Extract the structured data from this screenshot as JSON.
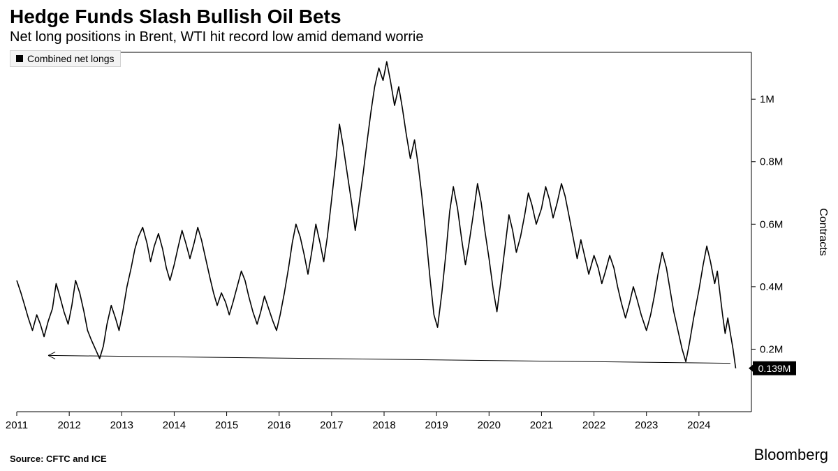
{
  "title": "Hedge Funds Slash Bullish Oil Bets",
  "subtitle": "Net long positions in Brent, WTI hit record low amid demand worrie",
  "legend": {
    "label": "Combined net longs",
    "swatch_color": "#000000"
  },
  "source": "Source: CFTC and ICE",
  "brand": "Bloomberg",
  "chart": {
    "type": "line",
    "background_color": "#ffffff",
    "line_color": "#000000",
    "line_width": 1.6,
    "border_color": "#000000",
    "grid_color": "#d0d0d0",
    "tick_color": "#000000",
    "tick_font_size": 15,
    "y_axis_label": "Contracts",
    "y_axis_label_font_size": 16,
    "x_domain": [
      2011,
      2025
    ],
    "y_domain": [
      0,
      1150000
    ],
    "x_ticks": [
      2011,
      2012,
      2013,
      2014,
      2015,
      2016,
      2017,
      2018,
      2019,
      2020,
      2021,
      2022,
      2023,
      2024
    ],
    "y_ticks": [
      {
        "v": 200000,
        "label": "0.2M"
      },
      {
        "v": 400000,
        "label": "0.4M"
      },
      {
        "v": 600000,
        "label": "0.6M"
      },
      {
        "v": 800000,
        "label": "0.8M"
      },
      {
        "v": 1000000,
        "label": "1M"
      }
    ],
    "callout": {
      "value": 139000,
      "label": "0.139M",
      "bg": "#000000",
      "fg": "#ffffff",
      "font_size": 14
    },
    "arrow": {
      "from_x": 2024.6,
      "from_y": 155000,
      "to_x": 2011.6,
      "to_y": 180000,
      "color": "#000000"
    },
    "series": [
      {
        "x": 2011.0,
        "y": 420000
      },
      {
        "x": 2011.08,
        "y": 380000
      },
      {
        "x": 2011.15,
        "y": 340000
      },
      {
        "x": 2011.22,
        "y": 300000
      },
      {
        "x": 2011.3,
        "y": 260000
      },
      {
        "x": 2011.38,
        "y": 310000
      },
      {
        "x": 2011.45,
        "y": 280000
      },
      {
        "x": 2011.52,
        "y": 240000
      },
      {
        "x": 2011.6,
        "y": 290000
      },
      {
        "x": 2011.68,
        "y": 330000
      },
      {
        "x": 2011.75,
        "y": 410000
      },
      {
        "x": 2011.82,
        "y": 370000
      },
      {
        "x": 2011.9,
        "y": 320000
      },
      {
        "x": 2011.98,
        "y": 280000
      },
      {
        "x": 2012.05,
        "y": 340000
      },
      {
        "x": 2012.12,
        "y": 420000
      },
      {
        "x": 2012.2,
        "y": 380000
      },
      {
        "x": 2012.28,
        "y": 320000
      },
      {
        "x": 2012.35,
        "y": 260000
      },
      {
        "x": 2012.42,
        "y": 230000
      },
      {
        "x": 2012.5,
        "y": 200000
      },
      {
        "x": 2012.58,
        "y": 170000
      },
      {
        "x": 2012.65,
        "y": 210000
      },
      {
        "x": 2012.72,
        "y": 280000
      },
      {
        "x": 2012.8,
        "y": 340000
      },
      {
        "x": 2012.88,
        "y": 300000
      },
      {
        "x": 2012.95,
        "y": 260000
      },
      {
        "x": 2013.02,
        "y": 320000
      },
      {
        "x": 2013.1,
        "y": 400000
      },
      {
        "x": 2013.18,
        "y": 460000
      },
      {
        "x": 2013.25,
        "y": 520000
      },
      {
        "x": 2013.32,
        "y": 560000
      },
      {
        "x": 2013.4,
        "y": 590000
      },
      {
        "x": 2013.48,
        "y": 540000
      },
      {
        "x": 2013.55,
        "y": 480000
      },
      {
        "x": 2013.62,
        "y": 530000
      },
      {
        "x": 2013.7,
        "y": 570000
      },
      {
        "x": 2013.78,
        "y": 520000
      },
      {
        "x": 2013.85,
        "y": 460000
      },
      {
        "x": 2013.92,
        "y": 420000
      },
      {
        "x": 2014.0,
        "y": 470000
      },
      {
        "x": 2014.08,
        "y": 530000
      },
      {
        "x": 2014.15,
        "y": 580000
      },
      {
        "x": 2014.22,
        "y": 540000
      },
      {
        "x": 2014.3,
        "y": 490000
      },
      {
        "x": 2014.38,
        "y": 540000
      },
      {
        "x": 2014.45,
        "y": 590000
      },
      {
        "x": 2014.52,
        "y": 550000
      },
      {
        "x": 2014.6,
        "y": 490000
      },
      {
        "x": 2014.68,
        "y": 430000
      },
      {
        "x": 2014.75,
        "y": 380000
      },
      {
        "x": 2014.82,
        "y": 340000
      },
      {
        "x": 2014.9,
        "y": 380000
      },
      {
        "x": 2014.98,
        "y": 350000
      },
      {
        "x": 2015.05,
        "y": 310000
      },
      {
        "x": 2015.12,
        "y": 350000
      },
      {
        "x": 2015.2,
        "y": 400000
      },
      {
        "x": 2015.28,
        "y": 450000
      },
      {
        "x": 2015.35,
        "y": 420000
      },
      {
        "x": 2015.42,
        "y": 370000
      },
      {
        "x": 2015.5,
        "y": 320000
      },
      {
        "x": 2015.58,
        "y": 280000
      },
      {
        "x": 2015.65,
        "y": 320000
      },
      {
        "x": 2015.72,
        "y": 370000
      },
      {
        "x": 2015.8,
        "y": 330000
      },
      {
        "x": 2015.88,
        "y": 290000
      },
      {
        "x": 2015.95,
        "y": 260000
      },
      {
        "x": 2016.02,
        "y": 310000
      },
      {
        "x": 2016.1,
        "y": 380000
      },
      {
        "x": 2016.18,
        "y": 460000
      },
      {
        "x": 2016.25,
        "y": 540000
      },
      {
        "x": 2016.32,
        "y": 600000
      },
      {
        "x": 2016.4,
        "y": 560000
      },
      {
        "x": 2016.48,
        "y": 500000
      },
      {
        "x": 2016.55,
        "y": 440000
      },
      {
        "x": 2016.62,
        "y": 510000
      },
      {
        "x": 2016.7,
        "y": 600000
      },
      {
        "x": 2016.78,
        "y": 540000
      },
      {
        "x": 2016.85,
        "y": 480000
      },
      {
        "x": 2016.92,
        "y": 560000
      },
      {
        "x": 2017.0,
        "y": 680000
      },
      {
        "x": 2017.08,
        "y": 800000
      },
      {
        "x": 2017.15,
        "y": 920000
      },
      {
        "x": 2017.22,
        "y": 850000
      },
      {
        "x": 2017.3,
        "y": 760000
      },
      {
        "x": 2017.38,
        "y": 670000
      },
      {
        "x": 2017.45,
        "y": 580000
      },
      {
        "x": 2017.52,
        "y": 660000
      },
      {
        "x": 2017.6,
        "y": 760000
      },
      {
        "x": 2017.68,
        "y": 870000
      },
      {
        "x": 2017.75,
        "y": 960000
      },
      {
        "x": 2017.82,
        "y": 1040000
      },
      {
        "x": 2017.9,
        "y": 1100000
      },
      {
        "x": 2017.98,
        "y": 1060000
      },
      {
        "x": 2018.05,
        "y": 1120000
      },
      {
        "x": 2018.12,
        "y": 1060000
      },
      {
        "x": 2018.2,
        "y": 980000
      },
      {
        "x": 2018.28,
        "y": 1040000
      },
      {
        "x": 2018.35,
        "y": 970000
      },
      {
        "x": 2018.42,
        "y": 890000
      },
      {
        "x": 2018.5,
        "y": 810000
      },
      {
        "x": 2018.58,
        "y": 870000
      },
      {
        "x": 2018.65,
        "y": 790000
      },
      {
        "x": 2018.72,
        "y": 690000
      },
      {
        "x": 2018.8,
        "y": 560000
      },
      {
        "x": 2018.88,
        "y": 420000
      },
      {
        "x": 2018.95,
        "y": 310000
      },
      {
        "x": 2019.02,
        "y": 270000
      },
      {
        "x": 2019.1,
        "y": 380000
      },
      {
        "x": 2019.18,
        "y": 510000
      },
      {
        "x": 2019.25,
        "y": 640000
      },
      {
        "x": 2019.32,
        "y": 720000
      },
      {
        "x": 2019.4,
        "y": 650000
      },
      {
        "x": 2019.48,
        "y": 550000
      },
      {
        "x": 2019.55,
        "y": 470000
      },
      {
        "x": 2019.62,
        "y": 540000
      },
      {
        "x": 2019.7,
        "y": 630000
      },
      {
        "x": 2019.78,
        "y": 730000
      },
      {
        "x": 2019.85,
        "y": 670000
      },
      {
        "x": 2019.92,
        "y": 580000
      },
      {
        "x": 2020.0,
        "y": 490000
      },
      {
        "x": 2020.08,
        "y": 390000
      },
      {
        "x": 2020.15,
        "y": 320000
      },
      {
        "x": 2020.22,
        "y": 410000
      },
      {
        "x": 2020.3,
        "y": 520000
      },
      {
        "x": 2020.38,
        "y": 630000
      },
      {
        "x": 2020.45,
        "y": 580000
      },
      {
        "x": 2020.52,
        "y": 510000
      },
      {
        "x": 2020.6,
        "y": 560000
      },
      {
        "x": 2020.68,
        "y": 630000
      },
      {
        "x": 2020.75,
        "y": 700000
      },
      {
        "x": 2020.82,
        "y": 660000
      },
      {
        "x": 2020.9,
        "y": 600000
      },
      {
        "x": 2021.0,
        "y": 650000
      },
      {
        "x": 2021.08,
        "y": 720000
      },
      {
        "x": 2021.15,
        "y": 680000
      },
      {
        "x": 2021.22,
        "y": 620000
      },
      {
        "x": 2021.3,
        "y": 670000
      },
      {
        "x": 2021.38,
        "y": 730000
      },
      {
        "x": 2021.45,
        "y": 690000
      },
      {
        "x": 2021.52,
        "y": 630000
      },
      {
        "x": 2021.6,
        "y": 560000
      },
      {
        "x": 2021.68,
        "y": 490000
      },
      {
        "x": 2021.75,
        "y": 550000
      },
      {
        "x": 2021.82,
        "y": 500000
      },
      {
        "x": 2021.9,
        "y": 440000
      },
      {
        "x": 2022.0,
        "y": 500000
      },
      {
        "x": 2022.08,
        "y": 460000
      },
      {
        "x": 2022.15,
        "y": 410000
      },
      {
        "x": 2022.22,
        "y": 450000
      },
      {
        "x": 2022.3,
        "y": 500000
      },
      {
        "x": 2022.38,
        "y": 460000
      },
      {
        "x": 2022.45,
        "y": 400000
      },
      {
        "x": 2022.52,
        "y": 350000
      },
      {
        "x": 2022.6,
        "y": 300000
      },
      {
        "x": 2022.68,
        "y": 350000
      },
      {
        "x": 2022.75,
        "y": 400000
      },
      {
        "x": 2022.82,
        "y": 360000
      },
      {
        "x": 2022.9,
        "y": 310000
      },
      {
        "x": 2023.0,
        "y": 260000
      },
      {
        "x": 2023.08,
        "y": 310000
      },
      {
        "x": 2023.15,
        "y": 370000
      },
      {
        "x": 2023.22,
        "y": 440000
      },
      {
        "x": 2023.3,
        "y": 510000
      },
      {
        "x": 2023.38,
        "y": 460000
      },
      {
        "x": 2023.45,
        "y": 390000
      },
      {
        "x": 2023.52,
        "y": 320000
      },
      {
        "x": 2023.6,
        "y": 260000
      },
      {
        "x": 2023.68,
        "y": 200000
      },
      {
        "x": 2023.75,
        "y": 160000
      },
      {
        "x": 2023.82,
        "y": 220000
      },
      {
        "x": 2023.9,
        "y": 300000
      },
      {
        "x": 2024.0,
        "y": 390000
      },
      {
        "x": 2024.08,
        "y": 470000
      },
      {
        "x": 2024.15,
        "y": 530000
      },
      {
        "x": 2024.22,
        "y": 480000
      },
      {
        "x": 2024.3,
        "y": 410000
      },
      {
        "x": 2024.35,
        "y": 450000
      },
      {
        "x": 2024.4,
        "y": 380000
      },
      {
        "x": 2024.45,
        "y": 310000
      },
      {
        "x": 2024.5,
        "y": 250000
      },
      {
        "x": 2024.55,
        "y": 300000
      },
      {
        "x": 2024.6,
        "y": 250000
      },
      {
        "x": 2024.65,
        "y": 200000
      },
      {
        "x": 2024.7,
        "y": 139000
      }
    ]
  }
}
